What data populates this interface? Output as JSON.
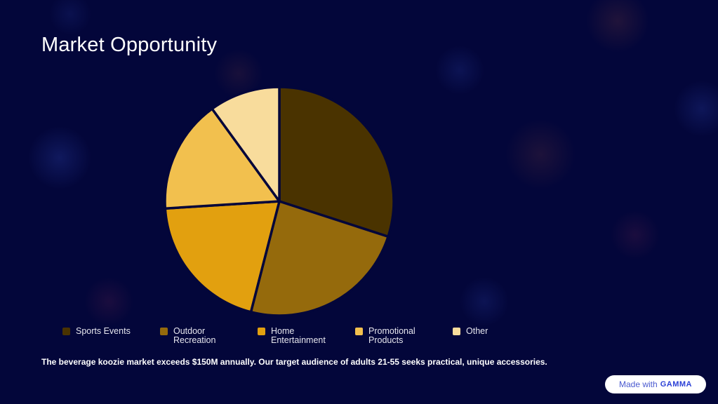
{
  "page": {
    "title": "Market Opportunity",
    "caption": "The beverage koozie market exceeds $150M annually. Our target audience of adults 21-55 seeks practical, unique accessories.",
    "badge_prefix": "Made with",
    "badge_brand": "GAMMA"
  },
  "colors": {
    "background": "#03063a",
    "slice_border": "#03063a"
  },
  "chart_data": {
    "type": "pie",
    "title": "",
    "legend_position": "bottom",
    "categories": [
      "Sports Events",
      "Outdoor Recreation",
      "Home Entertainment",
      "Promotional Products",
      "Other"
    ],
    "values": [
      30,
      24,
      20,
      16,
      10
    ],
    "colors": [
      "#4a3300",
      "#956a0c",
      "#e2a00f",
      "#f2c04e",
      "#f8dc9c"
    ]
  }
}
